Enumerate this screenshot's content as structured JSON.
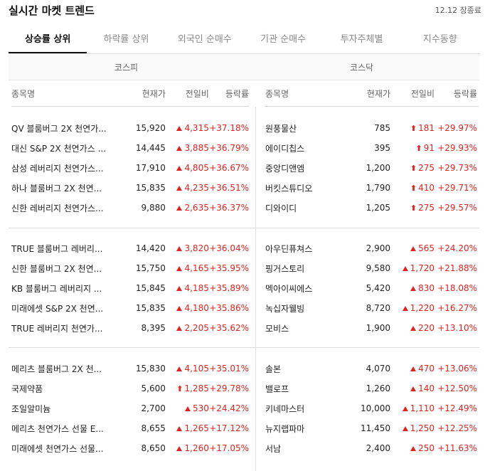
{
  "header": {
    "title": "실시간 마켓 트렌드",
    "status": "12.12 장종료"
  },
  "tabs": [
    "상승률 상위",
    "하락률 상위",
    "외국인 순매수",
    "기관 순매수",
    "투자주체별",
    "지수동향"
  ],
  "markets": [
    "코스피",
    "코스닥"
  ],
  "columns": {
    "name": "종목명",
    "price": "현재가",
    "change": "전일비",
    "rate": "등락률"
  },
  "colors": {
    "up": "#e0231d"
  },
  "kospi": [
    {
      "name": "QV 블룸버그 2X 천연가...",
      "price": "15,920",
      "change": "4,315",
      "rate": "+37.18%",
      "icon": "triangle-up"
    },
    {
      "name": "대신 S&P 2X 천연가스 ...",
      "price": "14,445",
      "change": "3,885",
      "rate": "+36.79%",
      "icon": "triangle-up"
    },
    {
      "name": "삼성 레버리지 천연가스...",
      "price": "17,910",
      "change": "4,805",
      "rate": "+36.67%",
      "icon": "triangle-up"
    },
    {
      "name": "하나 블룸버그 2X 천연...",
      "price": "15,835",
      "change": "4,235",
      "rate": "+36.51%",
      "icon": "triangle-up"
    },
    {
      "name": "신한 레버리지 천연가스...",
      "price": "9,880",
      "change": "2,635",
      "rate": "+36.37%",
      "icon": "triangle-up"
    },
    {
      "name": "TRUE 블룸버그 레버리...",
      "price": "14,420",
      "change": "3,820",
      "rate": "+36.04%",
      "icon": "triangle-up"
    },
    {
      "name": "신한 블룸버그 2X 천연...",
      "price": "15,750",
      "change": "4,165",
      "rate": "+35.95%",
      "icon": "triangle-up"
    },
    {
      "name": "KB 블룸버그 레버리지 ...",
      "price": "15,845",
      "change": "4,185",
      "rate": "+35.89%",
      "icon": "triangle-up"
    },
    {
      "name": "미래에셋 S&P 2X 천연...",
      "price": "15,835",
      "change": "4,180",
      "rate": "+35.86%",
      "icon": "triangle-up"
    },
    {
      "name": "TRUE 레버리지 천연가...",
      "price": "8,395",
      "change": "2,205",
      "rate": "+35.62%",
      "icon": "triangle-up"
    },
    {
      "name": "메리츠 블룸버그 2X 천...",
      "price": "15,830",
      "change": "4,105",
      "rate": "+35.01%",
      "icon": "triangle-up"
    },
    {
      "name": "국제약품",
      "price": "5,600",
      "change": "1,285",
      "rate": "+29.78%",
      "icon": "upper-limit-arrow"
    },
    {
      "name": "조일알미늄",
      "price": "2,700",
      "change": "530",
      "rate": "+24.42%",
      "icon": "triangle-up"
    },
    {
      "name": "메리츠 천연가스 선물 E...",
      "price": "8,655",
      "change": "1,265",
      "rate": "+17.12%",
      "icon": "triangle-up"
    },
    {
      "name": "미래에셋 천연가스 선물...",
      "price": "8,650",
      "change": "1,260",
      "rate": "+17.05%",
      "icon": "triangle-up"
    }
  ],
  "kosdaq": [
    {
      "name": "원풍물산",
      "price": "785",
      "change": "181",
      "rate": "+29.97%",
      "icon": "upper-limit-arrow"
    },
    {
      "name": "에이디칩스",
      "price": "395",
      "change": "91",
      "rate": "+29.93%",
      "icon": "upper-limit-arrow"
    },
    {
      "name": "중앙디앤엠",
      "price": "1,200",
      "change": "275",
      "rate": "+29.73%",
      "icon": "upper-limit-arrow"
    },
    {
      "name": "버킷스튜디오",
      "price": "1,790",
      "change": "410",
      "rate": "+29.71%",
      "icon": "upper-limit-arrow"
    },
    {
      "name": "디와이디",
      "price": "1,205",
      "change": "275",
      "rate": "+29.57%",
      "icon": "upper-limit-arrow"
    },
    {
      "name": "아우딘퓨쳐스",
      "price": "2,900",
      "change": "565",
      "rate": "+24.20%",
      "icon": "triangle-up"
    },
    {
      "name": "핑거스토리",
      "price": "9,580",
      "change": "1,720",
      "rate": "+21.88%",
      "icon": "triangle-up"
    },
    {
      "name": "멕아이씨에스",
      "price": "5,420",
      "change": "830",
      "rate": "+18.08%",
      "icon": "triangle-up"
    },
    {
      "name": "녹십자웰빙",
      "price": "8,720",
      "change": "1,220",
      "rate": "+16.27%",
      "icon": "triangle-up"
    },
    {
      "name": "모비스",
      "price": "1,900",
      "change": "220",
      "rate": "+13.10%",
      "icon": "triangle-up"
    },
    {
      "name": "솔본",
      "price": "4,070",
      "change": "470",
      "rate": "+13.06%",
      "icon": "triangle-up"
    },
    {
      "name": "밸로프",
      "price": "1,260",
      "change": "140",
      "rate": "+12.50%",
      "icon": "triangle-up"
    },
    {
      "name": "키네마스터",
      "price": "10,000",
      "change": "1,110",
      "rate": "+12.49%",
      "icon": "triangle-up"
    },
    {
      "name": "뉴지랩파마",
      "price": "11,450",
      "change": "1,250",
      "rate": "+12.25%",
      "icon": "triangle-up"
    },
    {
      "name": "서남",
      "price": "2,400",
      "change": "250",
      "rate": "+11.63%",
      "icon": "triangle-up"
    }
  ]
}
